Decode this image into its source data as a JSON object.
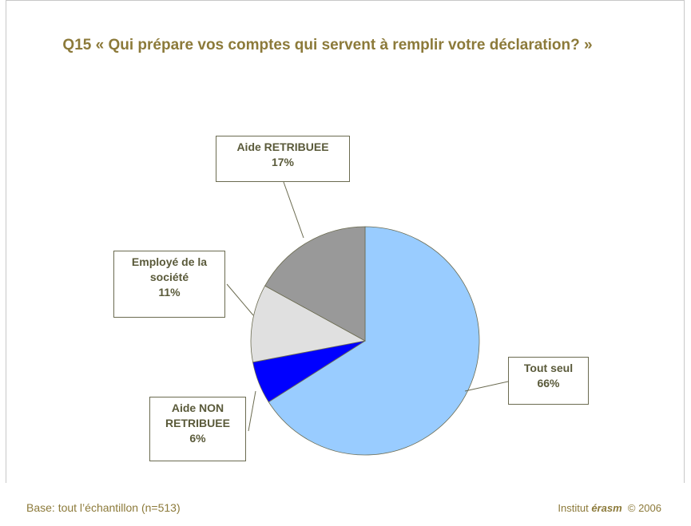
{
  "chart_data": {
    "type": "pie",
    "title": "Q15 « Qui prépare vos comptes qui servent à remplir votre déclaration? »",
    "categories": [
      "Tout seul",
      "Aide NON RETRIBUEE",
      "Employé de la société",
      "Aide RETRIBUEE"
    ],
    "values": [
      66,
      6,
      11,
      17
    ],
    "value_labels": [
      "66%",
      "6%",
      "11%",
      "17%"
    ],
    "colors": [
      "#99ccff",
      "#0000ff",
      "#e0e0e0",
      "#999999"
    ],
    "footer": {
      "base": "Base: tout l’échantillon (n=513)",
      "institute": "Institut",
      "brand": "érasm",
      "copyright": "© 2006"
    }
  }
}
